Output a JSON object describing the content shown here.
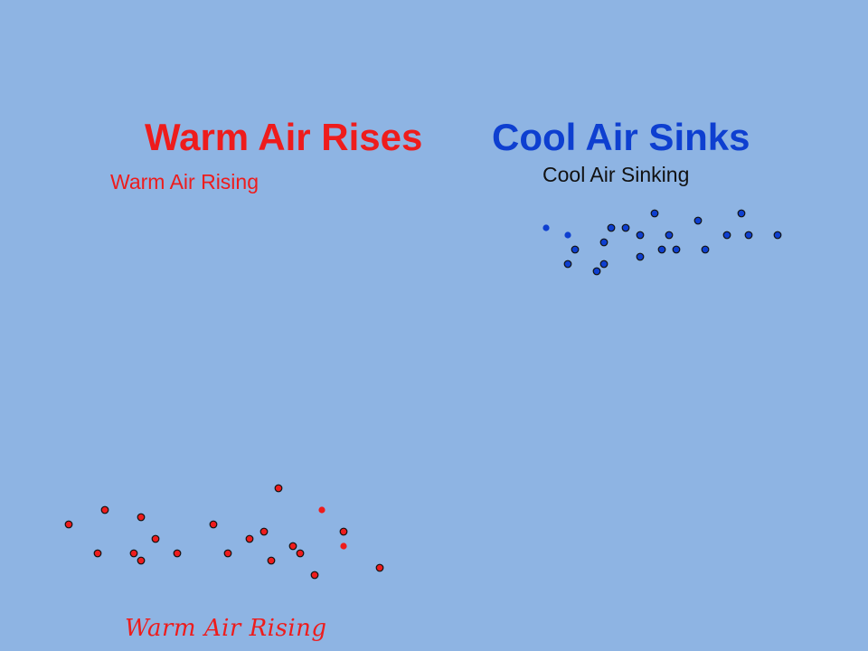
{
  "slide": {
    "title_warm": "Warm Air Rises",
    "title_cool": "Cool Air Sinks",
    "label_cool_sinking": "Cool Air Sinking",
    "label_warm_rising_top": "Warm Air Rising",
    "label_warm_rising_bottom": "Warm Air Rising"
  },
  "colors": {
    "background": "#8eb4e3",
    "warm": "#ee1c1c",
    "cool": "#0e3fd0",
    "particle_outline": "#111111"
  }
}
